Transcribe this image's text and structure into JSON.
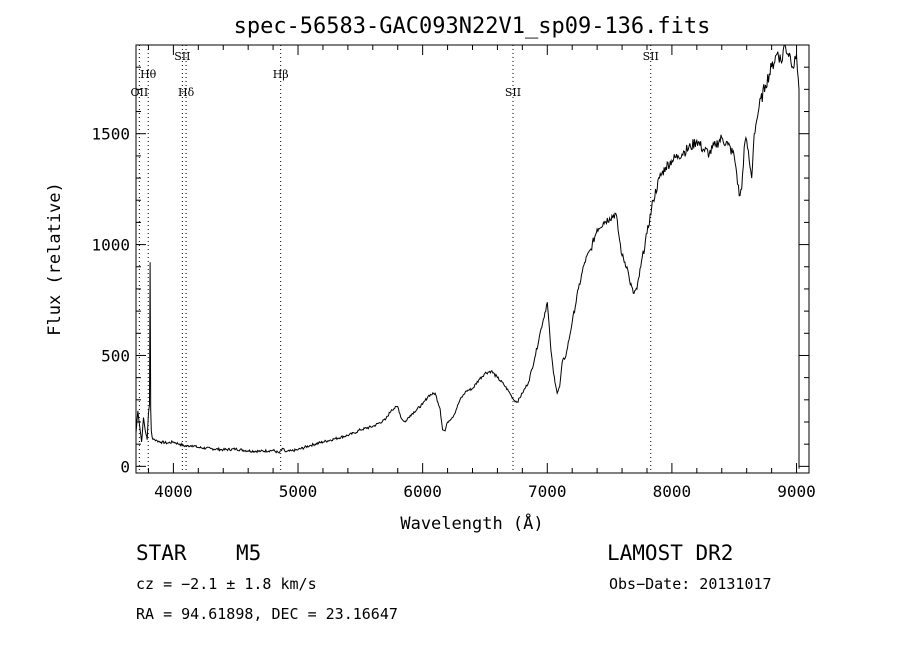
{
  "chart_data": {
    "type": "line",
    "title": "spec-56583-GAC093N22V1_sp09-136.fits",
    "xlabel": "Wavelength (Å)",
    "ylabel": "Flux (relative)",
    "xlim": [
      3700,
      9100
    ],
    "ylim": [
      -30,
      1900
    ],
    "x_ticks": [
      4000,
      5000,
      6000,
      7000,
      8000,
      9000
    ],
    "y_ticks": [
      0,
      500,
      1000,
      1500
    ],
    "grid": false,
    "series": [
      {
        "x": [
          3700,
          3715,
          3730,
          3745,
          3760,
          3775,
          3790,
          3800,
          3808,
          3813,
          3818,
          3823,
          3830,
          3850,
          3870,
          3900,
          3950,
          4000,
          4050,
          4100,
          4150,
          4200,
          4300,
          4400,
          4500,
          4600,
          4700,
          4800,
          4850,
          4880,
          4900,
          4950,
          5000,
          5100,
          5200,
          5300,
          5400,
          5450,
          5500,
          5600,
          5700,
          5750,
          5800,
          5830,
          5860,
          5900,
          6000,
          6050,
          6100,
          6140,
          6160,
          6180,
          6200,
          6250,
          6300,
          6350,
          6400,
          6450,
          6500,
          6550,
          6600,
          6650,
          6700,
          6730,
          6760,
          6800,
          6850,
          6900,
          6950,
          7000,
          7030,
          7050,
          7080,
          7100,
          7120,
          7150,
          7200,
          7250,
          7300,
          7350,
          7400,
          7450,
          7500,
          7550,
          7580,
          7600,
          7640,
          7660,
          7690,
          7720,
          7750,
          7800,
          7850,
          7900,
          7950,
          8000,
          8050,
          8100,
          8150,
          8200,
          8250,
          8300,
          8350,
          8400,
          8450,
          8500,
          8520,
          8540,
          8560,
          8580,
          8600,
          8620,
          8640,
          8660,
          8680,
          8700,
          8750,
          8800,
          8850,
          8880,
          8900,
          8950,
          8980,
          9000,
          9020
        ],
        "y": [
          150,
          250,
          180,
          110,
          220,
          160,
          120,
          240,
          280,
          920,
          260,
          160,
          130,
          120,
          115,
          110,
          105,
          110,
          100,
          90,
          95,
          85,
          80,
          75,
          78,
          70,
          68,
          72,
          60,
          80,
          65,
          70,
          75,
          95,
          110,
          125,
          140,
          150,
          165,
          180,
          210,
          255,
          270,
          215,
          200,
          230,
          280,
          320,
          330,
          260,
          165,
          160,
          200,
          230,
          300,
          340,
          350,
          390,
          420,
          430,
          400,
          370,
          330,
          300,
          290,
          330,
          380,
          490,
          620,
          740,
          520,
          420,
          330,
          360,
          470,
          500,
          650,
          800,
          920,
          980,
          1070,
          1100,
          1120,
          1140,
          1020,
          950,
          900,
          840,
          780,
          800,
          900,
          1050,
          1200,
          1300,
          1350,
          1380,
          1400,
          1420,
          1440,
          1470,
          1430,
          1410,
          1450,
          1480,
          1450,
          1400,
          1320,
          1220,
          1250,
          1440,
          1470,
          1380,
          1300,
          1500,
          1560,
          1620,
          1720,
          1800,
          1870,
          1820,
          1900,
          1850,
          1800,
          1860,
          1700
        ],
        "color": "#000000"
      }
    ],
    "annotations": [
      {
        "label": "OII",
        "x": 3727,
        "row": 3
      },
      {
        "label": "Hθ",
        "x": 3798,
        "row": 2
      },
      {
        "label": "SII",
        "x": 4072,
        "row": 1
      },
      {
        "label": "Hδ",
        "x": 4102,
        "row": 3
      },
      {
        "label": "Hβ",
        "x": 4861,
        "row": 2
      },
      {
        "label": "SII",
        "x": 6725,
        "row": 3
      },
      {
        "label": "SII",
        "x": 7830,
        "row": 1
      }
    ]
  },
  "info": {
    "object_class": "STAR",
    "subclass": "M5",
    "survey": "LAMOST DR2",
    "cz": "cz = −2.1 ± 1.8 km/s",
    "obs_date": "Obs−Date: 20131017",
    "radec": "RA =  94.61898, DEC =  23.16647"
  }
}
